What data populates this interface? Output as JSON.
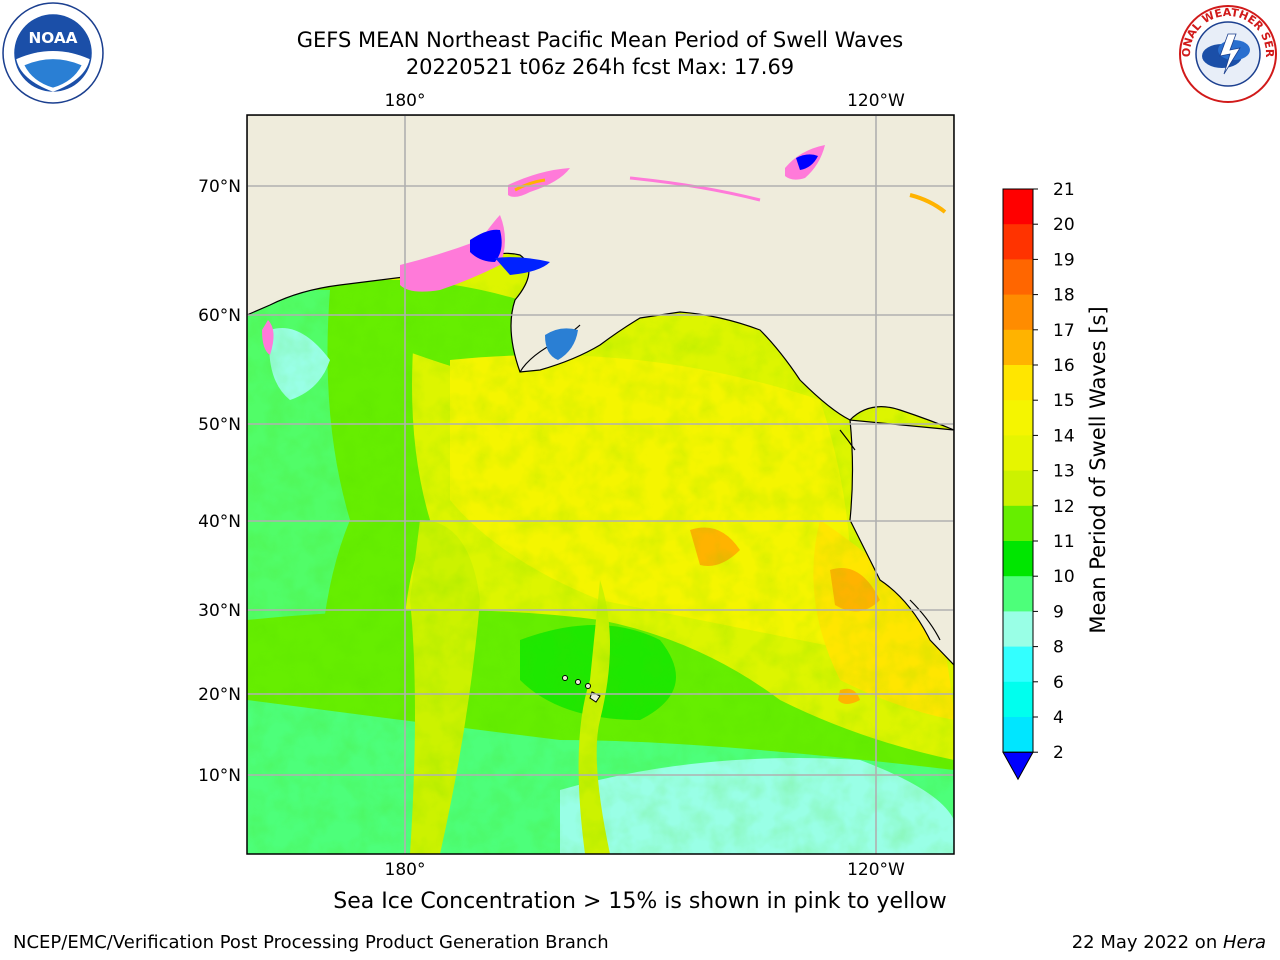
{
  "title": {
    "line1": "GEFS MEAN Northeast Pacific Mean Period of Swell Waves",
    "line2": "20220521 t06z 264h fcst   Max: 17.69"
  },
  "logos": {
    "left": {
      "icon": "noaa-logo-icon",
      "text": "NOAA"
    },
    "right": {
      "icon": "nws-logo-icon",
      "text": "NATIONAL WEATHER SERVICE"
    }
  },
  "map": {
    "lon_labels_top": [
      "180°",
      "120°W"
    ],
    "lon_labels_bottom": [
      "180°",
      "120°W"
    ],
    "lat_labels": [
      "70°N",
      "60°N",
      "50°N",
      "40°N",
      "30°N",
      "20°N",
      "10°N"
    ],
    "land_color": "#efecdc",
    "grid_color": "#b0b0b0"
  },
  "colorbar": {
    "label": "Mean Period of Swell Waves [s]",
    "ticks": [
      "21",
      "20",
      "19",
      "18",
      "17",
      "16",
      "15",
      "14",
      "13",
      "12",
      "11",
      "10",
      "9",
      "8",
      "6",
      "4",
      "2"
    ],
    "colors": [
      "#ff0000",
      "#ff3300",
      "#ff6600",
      "#ff8c00",
      "#ffb300",
      "#ffe600",
      "#f5f500",
      "#e6f500",
      "#ccf200",
      "#66ee00",
      "#00e600",
      "#4dff7a",
      "#99ffe6",
      "#33ffff",
      "#00ffee",
      "#00e6ff",
      "#0080ff"
    ],
    "extend_color": "#0000ff"
  },
  "notes": {
    "ice": "Sea Ice Concentration > 15% is shown in pink to yellow"
  },
  "footer": {
    "left": "NCEP/EMC/Verification Post Processing Product Generation Branch",
    "date": "22 May 2022 on ",
    "host": "Hera"
  }
}
